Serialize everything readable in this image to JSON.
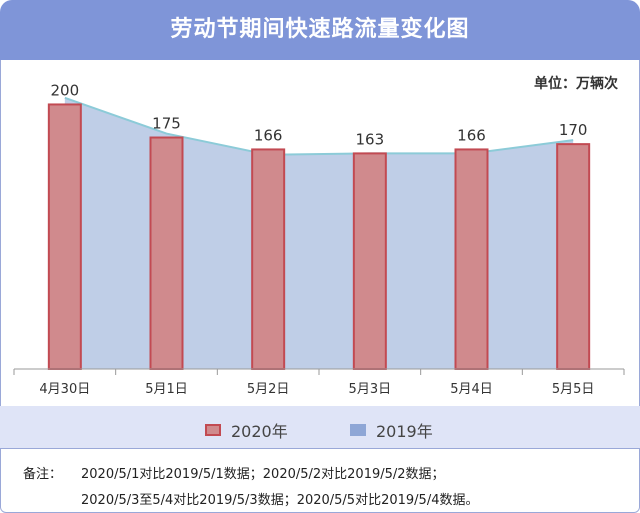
{
  "header": {
    "title": "劳动节期间快速路流量变化图"
  },
  "unit_label": "单位：万辆次",
  "legend": {
    "series_2020": "2020年",
    "series_2019": "2019年"
  },
  "notes": {
    "label": "备注：",
    "line1": "2020/5/1对比2019/5/1数据；2020/5/2对比2019/5/2数据；",
    "line2": "2020/5/3至5/4对比2019/5/3数据；2020/5/5对比2019/5/4数据。"
  },
  "colors": {
    "bar_fill": "#d08a8d",
    "bar_stroke": "#c24a52",
    "area_fill": "#b4c5e3",
    "area_line": "#8ccbd8",
    "header": "#7f95d8"
  },
  "chart_data": {
    "type": "bar",
    "categories": [
      "4月30日",
      "5月1日",
      "5月2日",
      "5月3日",
      "5月4日",
      "5月5日"
    ],
    "series": [
      {
        "name": "2020年",
        "type": "bar",
        "values": [
          200,
          175,
          166,
          163,
          166,
          170
        ]
      },
      {
        "name": "2019年",
        "type": "area",
        "values": [
          205,
          178,
          162,
          163,
          163,
          173
        ]
      }
    ],
    "data_labels": [
      "200",
      "175",
      "166",
      "163",
      "166",
      "170"
    ],
    "ylim": [
      0,
      220
    ],
    "grid": false,
    "legend_position": "bottom"
  }
}
